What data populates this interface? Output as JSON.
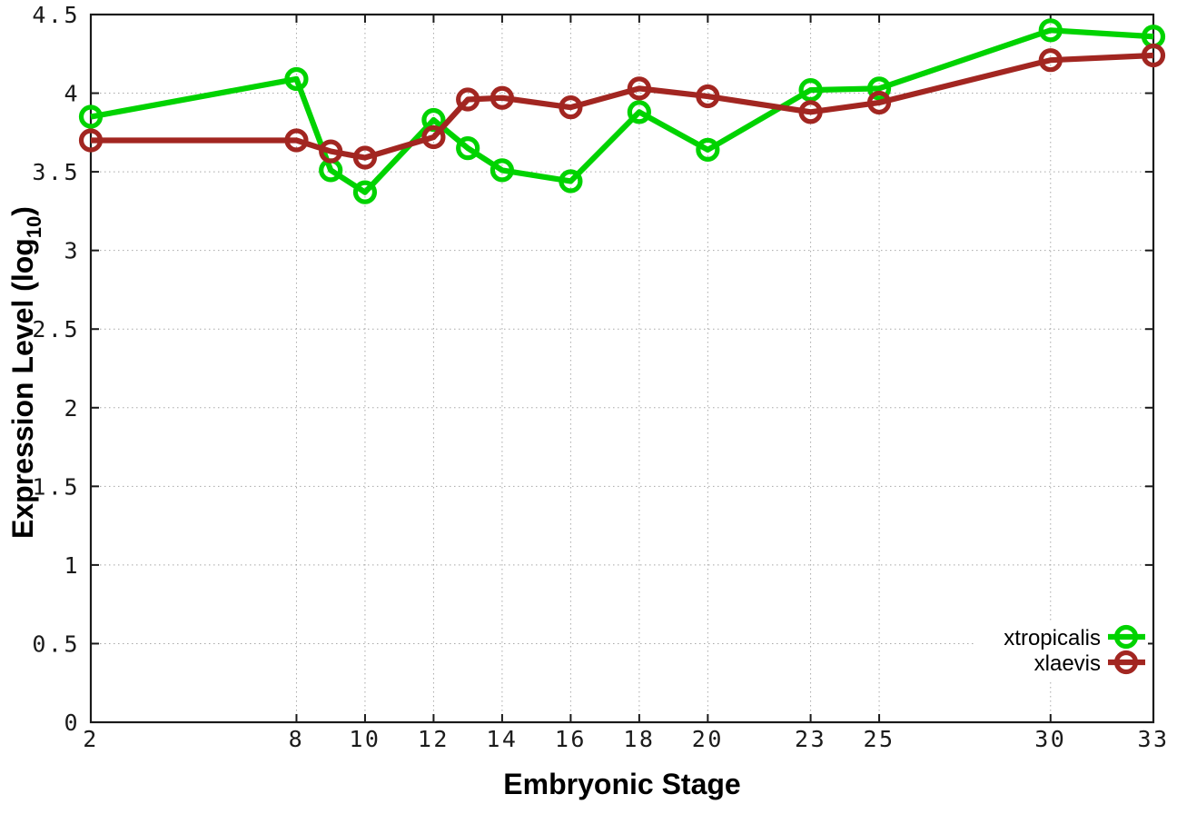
{
  "figure": {
    "background": "#ffffff",
    "border_color": "#1a1a1a",
    "grid_color": "#a8a8a8",
    "tick_label_color": "#1b1b1b"
  },
  "chart_data": {
    "type": "line",
    "title": "",
    "xlabel": "Embryonic Stage",
    "ylabel": "Expression Level (log10)",
    "ylabel_main": "Expression Level (log",
    "ylabel_sub": "10",
    "ylabel_close": ")",
    "marker": "open-circle",
    "grid": true,
    "legend_position": "bottom-right",
    "xlim": [
      2,
      33
    ],
    "ylim": [
      0,
      4.5
    ],
    "xticks": [
      2,
      8,
      10,
      12,
      14,
      16,
      18,
      20,
      23,
      25,
      30,
      33
    ],
    "yticks": [
      0,
      0.5,
      1,
      1.5,
      2,
      2.5,
      3,
      3.5,
      4,
      4.5
    ],
    "x": [
      2,
      8,
      9,
      10,
      12,
      13,
      14,
      16,
      18,
      20,
      23,
      25,
      30,
      33
    ],
    "series": [
      {
        "name": "xtropicalis",
        "color": "#00d300",
        "values": [
          3.85,
          4.09,
          3.51,
          3.37,
          3.83,
          3.65,
          3.51,
          3.44,
          3.88,
          3.64,
          4.02,
          4.03,
          4.4,
          4.36
        ]
      },
      {
        "name": "xlaevis",
        "color": "#a22621",
        "values": [
          3.7,
          3.7,
          3.63,
          3.59,
          3.72,
          3.96,
          3.97,
          3.91,
          4.03,
          3.98,
          3.88,
          3.94,
          4.21,
          4.24
        ]
      }
    ]
  }
}
